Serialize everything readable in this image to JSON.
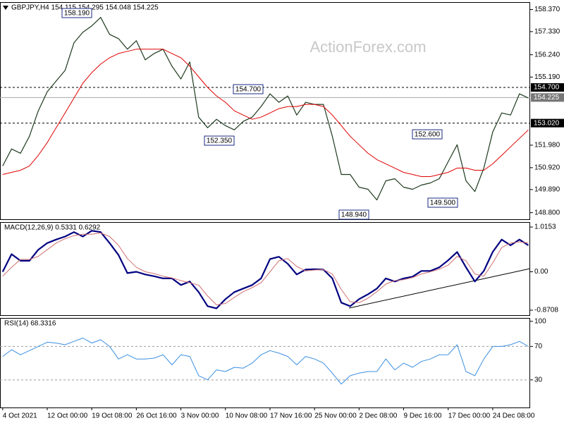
{
  "chart_data": [
    {
      "type": "line",
      "title": "GBPJPY,H4 154.115 154.295 154.048 154.225",
      "watermark": "ActionForex.com",
      "xlim": [
        -0.3,
        59.2
      ],
      "ylim": [
        148.49,
        158.72
      ],
      "yticks": [
        {
          "value": 158.37,
          "label": "158.370"
        },
        {
          "value": 157.33,
          "label": "157.330"
        },
        {
          "value": 156.24,
          "label": "156.240"
        },
        {
          "value": 155.19,
          "label": "155.190"
        },
        {
          "value": 151.98,
          "label": "151.980"
        },
        {
          "value": 150.92,
          "label": "150.920"
        },
        {
          "value": 149.89,
          "label": "149.890"
        },
        {
          "value": 148.8,
          "label": "148.800"
        }
      ],
      "levels": [
        {
          "value": 154.7,
          "label": "154.700",
          "line_style": "dashed"
        },
        {
          "value": 154.225,
          "label": "154.225",
          "line_style": "solid"
        },
        {
          "value": 153.02,
          "label": "153.020",
          "line_style": "dashed"
        }
      ],
      "annotations": [
        "158.190",
        "154.700",
        "152.350",
        "148.940",
        "152.600",
        "149.500"
      ],
      "series": [
        {
          "name": "GBPJPY",
          "color": "#1e3a1e",
          "width": 1.2,
          "values": [
            151.0,
            151.8,
            151.6,
            152.4,
            153.6,
            154.5,
            155.0,
            155.5,
            156.8,
            157.3,
            157.6,
            158.0,
            157.2,
            157.0,
            156.5,
            156.9,
            156.0,
            156.3,
            156.5,
            155.7,
            155.1,
            155.9,
            153.3,
            152.8,
            153.2,
            152.9,
            152.7,
            153.1,
            153.3,
            153.8,
            154.4,
            154.0,
            154.3,
            153.4,
            154.0,
            153.9,
            153.9,
            152.4,
            150.6,
            150.6,
            150.0,
            149.9,
            149.4,
            150.3,
            150.4,
            150.0,
            149.9,
            150.1,
            150.2,
            150.4,
            151.2,
            152.0,
            150.3,
            149.8,
            150.9,
            152.6,
            153.5,
            153.4,
            154.4,
            154.2
          ]
        },
        {
          "name": "MA",
          "color": "#e00000",
          "width": 1,
          "values": [
            150.6,
            150.7,
            150.8,
            151.0,
            151.5,
            152.1,
            152.8,
            153.5,
            154.2,
            154.9,
            155.4,
            155.8,
            156.1,
            156.3,
            156.4,
            156.5,
            156.5,
            156.5,
            156.5,
            156.3,
            156.1,
            155.7,
            155.2,
            154.7,
            154.3,
            154.0,
            153.6,
            153.4,
            153.2,
            153.3,
            153.5,
            153.7,
            153.8,
            153.8,
            153.9,
            153.9,
            153.8,
            153.4,
            152.9,
            152.4,
            152.0,
            151.6,
            151.3,
            151.1,
            150.9,
            150.7,
            150.6,
            150.5,
            150.5,
            150.6,
            150.7,
            150.9,
            150.9,
            150.8,
            150.8,
            151.1,
            151.5,
            151.9,
            152.3,
            152.7
          ]
        }
      ]
    },
    {
      "type": "line",
      "title": "MACD(12,26,9) 0.5331 0.6292",
      "xlim": [
        -0.3,
        59.2
      ],
      "ylim": [
        -0.983,
        1.127
      ],
      "yticks": [
        1.0153,
        {
          "value": 0,
          "label": "0.00"
        },
        -0.8708
      ],
      "series": [
        {
          "name": "MACD",
          "color": "#000080",
          "width": 2.2,
          "values": [
            0,
            0.4,
            0.25,
            0.25,
            0.5,
            0.65,
            0.73,
            0.8,
            0.9,
            0.8,
            0.93,
            0.9,
            0.65,
            0.38,
            -0.03,
            0,
            -0.06,
            -0.1,
            -0.15,
            -0.15,
            -0.3,
            -0.22,
            -0.46,
            -0.78,
            -0.83,
            -0.62,
            -0.46,
            -0.38,
            -0.3,
            -0.15,
            0.29,
            0.34,
            0.18,
            -0.06,
            0.05,
            0.06,
            0.05,
            -0.15,
            -0.7,
            -0.78,
            -0.62,
            -0.51,
            -0.38,
            -0.15,
            -0.22,
            -0.15,
            -0.11,
            0.02,
            0.02,
            0.1,
            0.26,
            0.45,
            0.1,
            -0.22,
            0.02,
            0.45,
            0.73,
            0.6,
            0.73,
            0.6
          ]
        },
        {
          "name": "Signal",
          "color": "#d07070",
          "width": 1,
          "values": [
            -0.1,
            0.1,
            0.28,
            0.28,
            0.35,
            0.5,
            0.65,
            0.75,
            0.82,
            0.85,
            0.85,
            0.88,
            0.8,
            0.6,
            0.3,
            0.1,
            0,
            -0.04,
            -0.1,
            -0.14,
            -0.2,
            -0.25,
            -0.3,
            -0.55,
            -0.75,
            -0.72,
            -0.58,
            -0.45,
            -0.36,
            -0.25,
            0,
            0.25,
            0.3,
            0.12,
            0.02,
            0.04,
            0.05,
            -0.05,
            -0.4,
            -0.68,
            -0.7,
            -0.6,
            -0.45,
            -0.28,
            -0.2,
            -0.18,
            -0.13,
            -0.05,
            0,
            0.06,
            0.15,
            0.35,
            0.25,
            -0.05,
            -0.1,
            0.2,
            0.55,
            0.65,
            0.68,
            0.65
          ]
        }
      ]
    },
    {
      "type": "line",
      "title": "RSI(14) 68.3316",
      "xlim": [
        -0.3,
        59.2
      ],
      "ylim": [
        -3,
        104
      ],
      "yticks": [
        100,
        70,
        30
      ],
      "levels": [
        70,
        30
      ],
      "xticks": [
        {
          "value": 0,
          "label": "4 Oct 2021"
        },
        {
          "value": 5,
          "label": "12 Oct 00:00"
        },
        {
          "value": 10,
          "label": "19 Oct 08:00"
        },
        {
          "value": 15,
          "label": "26 Oct 16:00"
        },
        {
          "value": 20,
          "label": "3 Nov 00:00"
        },
        {
          "value": 25,
          "label": "10 Nov 08:00"
        },
        {
          "value": 30,
          "label": "17 Nov 16:00"
        },
        {
          "value": 35,
          "label": "25 Nov 00:00"
        },
        {
          "value": 40,
          "label": "2 Dec 08:00"
        },
        {
          "value": 45,
          "label": "9 Dec 16:00"
        },
        {
          "value": 50,
          "label": "17 Dec 00:00"
        },
        {
          "value": 55,
          "label": "24 Dec 08:00"
        }
      ],
      "series": [
        {
          "name": "RSI",
          "color": "#3b8fe0",
          "width": 1,
          "values": [
            58,
            66,
            60,
            65,
            70,
            75,
            74,
            72,
            76,
            80,
            74,
            78,
            70,
            55,
            60,
            55,
            55,
            56,
            60,
            48,
            60,
            58,
            35,
            30,
            42,
            40,
            45,
            44,
            50,
            60,
            65,
            62,
            58,
            48,
            58,
            55,
            50,
            38,
            25,
            35,
            38,
            40,
            40,
            55,
            42,
            50,
            45,
            52,
            55,
            60,
            60,
            72,
            40,
            35,
            55,
            70,
            70,
            72,
            76,
            70
          ]
        }
      ]
    }
  ]
}
